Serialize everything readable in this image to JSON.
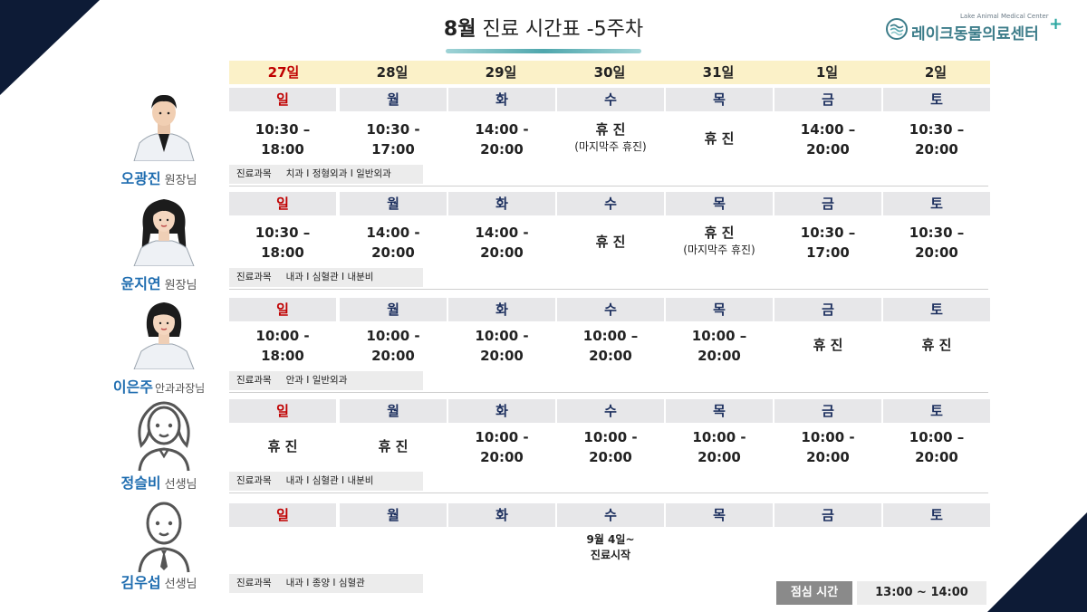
{
  "header": {
    "title_bold": "8월",
    "title_rest": " 진료 시간표 -5주차",
    "logo_en": "Lake Animal Medical Center",
    "logo_ko": "레이크동물의료센터",
    "logo_plus": "+"
  },
  "dates": [
    "27일",
    "28일",
    "29일",
    "30일",
    "31일",
    "1일",
    "2일"
  ],
  "weekdays": [
    "일",
    "월",
    "화",
    "수",
    "목",
    "금",
    "토"
  ],
  "spec_label": "진료과목",
  "doctors": [
    {
      "name": "오광진",
      "rank": "원장님",
      "specialty": "치과 I 정형외과 I 일반외과",
      "times": [
        {
          "main": "10:30 –\n18:00",
          "sub": ""
        },
        {
          "main": "10:30 -\n17:00",
          "sub": ""
        },
        {
          "main": "14:00 -\n20:00",
          "sub": ""
        },
        {
          "main": "휴 진",
          "sub": "(마지막주 휴진)"
        },
        {
          "main": "휴 진",
          "sub": ""
        },
        {
          "main": "14:00 –\n20:00",
          "sub": ""
        },
        {
          "main": "10:30 –\n20:00",
          "sub": ""
        }
      ]
    },
    {
      "name": "윤지연",
      "rank": "원장님",
      "specialty": "내과 I 심혈관 I 내분비",
      "times": [
        {
          "main": "10:30 –\n18:00",
          "sub": ""
        },
        {
          "main": "14:00 -\n20:00",
          "sub": ""
        },
        {
          "main": "14:00 -\n20:00",
          "sub": ""
        },
        {
          "main": "휴 진",
          "sub": ""
        },
        {
          "main": "휴 진",
          "sub": "(마지막주 휴진)"
        },
        {
          "main": "10:30 –\n17:00",
          "sub": ""
        },
        {
          "main": "10:30 –\n20:00",
          "sub": ""
        }
      ]
    },
    {
      "name": "이은주",
      "rank": "안과과장님",
      "specialty": "안과 I 일반외과",
      "times": [
        {
          "main": "10:00 -\n18:00",
          "sub": ""
        },
        {
          "main": "10:00 -\n20:00",
          "sub": ""
        },
        {
          "main": "10:00 -\n20:00",
          "sub": ""
        },
        {
          "main": "10:00 –\n20:00",
          "sub": ""
        },
        {
          "main": "10:00 –\n20:00",
          "sub": ""
        },
        {
          "main": "휴 진",
          "sub": ""
        },
        {
          "main": "휴 진",
          "sub": ""
        }
      ]
    },
    {
      "name": "정슬비",
      "rank": "선생님",
      "specialty": "내과 I 심혈관 I 내분비",
      "times": [
        {
          "main": "휴 진",
          "sub": ""
        },
        {
          "main": "휴 진",
          "sub": ""
        },
        {
          "main": "10:00 -\n20:00",
          "sub": ""
        },
        {
          "main": "10:00 -\n20:00",
          "sub": ""
        },
        {
          "main": "10:00 -\n20:00",
          "sub": ""
        },
        {
          "main": "10:00 -\n20:00",
          "sub": ""
        },
        {
          "main": "10:00 –\n20:00",
          "sub": ""
        }
      ]
    },
    {
      "name": "김우섭",
      "rank": "선생님",
      "specialty": "내과 I 종양 I 심혈관",
      "times": [
        {
          "main": "",
          "sub": ""
        },
        {
          "main": "",
          "sub": ""
        },
        {
          "main": "",
          "sub": ""
        },
        {
          "main": "9월 4일~\n진료시작",
          "sub": ""
        },
        {
          "main": "",
          "sub": ""
        },
        {
          "main": "",
          "sub": ""
        },
        {
          "main": "",
          "sub": ""
        }
      ]
    }
  ],
  "lunch": {
    "label": "점심 시간",
    "time": "13:00 ~ 14:00"
  },
  "colors": {
    "navy": "#0d1b36",
    "sunday_red": "#c00000",
    "day_blue": "#1c2f5e",
    "name_blue": "#1f6db0",
    "date_bg": "#fbf1c8"
  },
  "icons": {
    "logo": "lake-logo-icon"
  }
}
